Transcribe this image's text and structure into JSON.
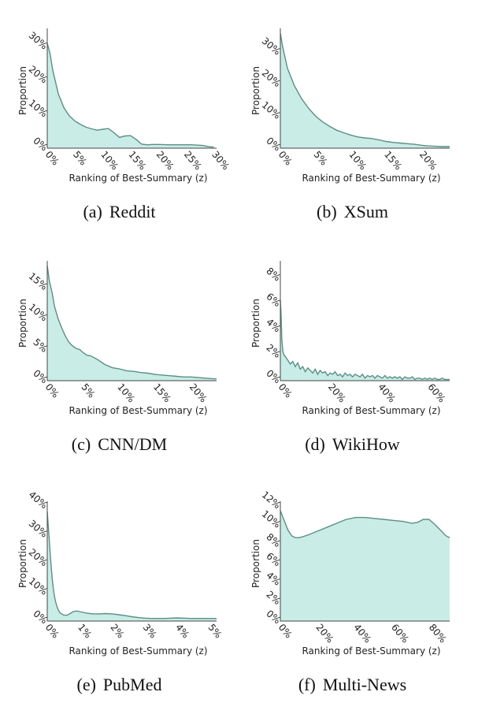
{
  "figure": {
    "xlabel": "Ranking of Best-Summary (z)",
    "ylabel": "Proportion",
    "fill_color": "#c9ece6",
    "line_color": "#5a8f85"
  },
  "chart_data": [
    {
      "type": "area",
      "caption_tag": "(a)",
      "caption": "Reddit",
      "xlabel": "Ranking of Best-Summary (z)",
      "ylabel": "Proportion",
      "xlim": [
        0,
        30.5
      ],
      "ylim": [
        0,
        34
      ],
      "xticks": [
        0,
        5,
        10,
        15,
        20,
        25,
        30
      ],
      "xtick_labels": [
        "0%",
        "5%",
        "10%",
        "15%",
        "20%",
        "25%",
        "30%"
      ],
      "yticks": [
        0,
        10,
        20,
        30
      ],
      "ytick_labels": [
        "0%",
        "10%",
        "20%",
        "30%"
      ],
      "x": [
        0,
        0.5,
        1,
        2,
        3,
        4,
        5,
        6,
        7,
        8,
        9,
        10,
        11,
        12,
        13,
        14,
        15,
        16,
        17,
        18,
        19,
        20,
        22,
        24,
        26,
        28,
        29,
        30
      ],
      "y": [
        31,
        28,
        23,
        16,
        12,
        9.5,
        8,
        7,
        6.2,
        5.7,
        5.3,
        5.6,
        5.8,
        4.6,
        3.2,
        3.6,
        3.7,
        2.6,
        1.2,
        1.0,
        1.1,
        1.1,
        1.0,
        1.0,
        1.0,
        0.8,
        0.5,
        0.3
      ]
    },
    {
      "type": "area",
      "caption_tag": "(b)",
      "caption": "XSum",
      "xlabel": "Ranking of Best-Summary (z)",
      "ylabel": "Proportion",
      "xlim": [
        0,
        24
      ],
      "ylim": [
        0,
        36
      ],
      "xticks": [
        0,
        5,
        10,
        15,
        20
      ],
      "xtick_labels": [
        "0%",
        "5%",
        "10%",
        "15%",
        "20%"
      ],
      "yticks": [
        0,
        10,
        20,
        30
      ],
      "ytick_labels": [
        "0%",
        "10%",
        "20%",
        "30%"
      ],
      "x": [
        0,
        0.3,
        0.7,
        1,
        2,
        3,
        4,
        5,
        6,
        7,
        8,
        9,
        10,
        11,
        12,
        13,
        14,
        15,
        16,
        17,
        18,
        19,
        20,
        21,
        22,
        23,
        24
      ],
      "y": [
        36,
        32,
        28,
        25,
        19.5,
        15.5,
        12.5,
        10,
        8.2,
        6.8,
        5.6,
        4.8,
        4.1,
        3.5,
        3.2,
        3.0,
        2.6,
        2.1,
        1.8,
        1.6,
        1.4,
        1.2,
        0.9,
        0.7,
        0.6,
        0.5,
        0.5
      ]
    },
    {
      "type": "area",
      "caption_tag": "(c)",
      "caption": "CNN/DM",
      "xlabel": "Ranking of Best-Summary (z)",
      "ylabel": "Proportion",
      "xlim": [
        0,
        23.5
      ],
      "ylim": [
        0,
        18.5
      ],
      "xticks": [
        0,
        5,
        10,
        15,
        20
      ],
      "xtick_labels": [
        "0%",
        "5%",
        "10%",
        "15%",
        "20%"
      ],
      "yticks": [
        0,
        5,
        10,
        15
      ],
      "ytick_labels": [
        "0%",
        "5%",
        "10%",
        "15%"
      ],
      "x": [
        0,
        0.3,
        0.7,
        1,
        1.5,
        2,
        2.5,
        3,
        3.5,
        4,
        4.5,
        5,
        5.5,
        6,
        7,
        8,
        9,
        10,
        11,
        12,
        13,
        14,
        15,
        16,
        17,
        18,
        19,
        20,
        21,
        22,
        23,
        23.5
      ],
      "y": [
        18.5,
        16,
        14,
        12,
        10,
        8.5,
        7.2,
        6.2,
        5.6,
        5.2,
        5.0,
        4.5,
        4.1,
        4.0,
        3.4,
        2.6,
        2.1,
        1.9,
        1.6,
        1.5,
        1.3,
        1.2,
        1.0,
        0.9,
        0.8,
        0.7,
        0.6,
        0.6,
        0.5,
        0.4,
        0.3,
        0.3
      ]
    },
    {
      "type": "area",
      "caption_tag": "(d)",
      "caption": "WikiHow",
      "xlabel": "Ranking of Best-Summary (z)",
      "ylabel": "Proportion",
      "xlim": [
        0,
        68
      ],
      "ylim": [
        0,
        9
      ],
      "xticks": [
        0,
        20,
        40,
        60
      ],
      "xtick_labels": [
        "0%",
        "20%",
        "40%",
        "60%"
      ],
      "yticks": [
        0,
        2,
        4,
        6,
        8
      ],
      "ytick_labels": [
        "0%",
        "2%",
        "4%",
        "6%",
        "8%"
      ],
      "x": [
        0,
        0.3,
        0.6,
        1,
        1.5,
        2,
        3,
        4,
        5,
        6,
        7,
        8,
        9,
        10,
        11,
        12,
        13,
        14,
        15,
        16,
        17,
        18,
        19,
        20,
        21,
        22,
        23,
        24,
        25,
        26,
        27,
        28,
        29,
        30,
        31,
        32,
        33,
        34,
        35,
        36,
        37,
        38,
        39,
        40,
        41,
        42,
        43,
        44,
        45,
        46,
        47,
        48,
        49,
        50,
        51,
        52,
        53,
        54,
        55,
        56,
        57,
        58,
        59,
        60,
        61,
        62,
        63,
        64,
        65,
        66,
        67,
        68
      ],
      "y": [
        6.3,
        5.2,
        3.2,
        2.3,
        2.0,
        1.9,
        1.6,
        1.3,
        1.5,
        1.1,
        1.4,
        0.9,
        1.1,
        0.7,
        1.0,
        0.8,
        0.6,
        0.9,
        0.5,
        0.8,
        0.6,
        0.7,
        0.4,
        0.6,
        0.5,
        0.7,
        0.4,
        0.5,
        0.3,
        0.6,
        0.4,
        0.5,
        0.3,
        0.5,
        0.4,
        0.3,
        0.5,
        0.2,
        0.4,
        0.3,
        0.4,
        0.2,
        0.4,
        0.3,
        0.2,
        0.4,
        0.2,
        0.3,
        0.2,
        0.3,
        0.2,
        0.3,
        0.1,
        0.3,
        0.2,
        0.2,
        0.3,
        0.1,
        0.2,
        0.2,
        0.1,
        0.2,
        0.1,
        0.2,
        0.1,
        0.2,
        0.1,
        0.1,
        0.2,
        0.1,
        0.1,
        0.1
      ]
    },
    {
      "type": "area",
      "caption_tag": "(e)",
      "caption": "PubMed",
      "xlabel": "Ranking of Best-Summary (z)",
      "ylabel": "Proportion",
      "xlim": [
        0,
        5.2
      ],
      "ylim": [
        0,
        40
      ],
      "xticks": [
        0,
        1,
        2,
        3,
        4,
        5
      ],
      "xtick_labels": [
        "0%",
        "1%",
        "2%",
        "3%",
        "4%",
        "5%"
      ],
      "yticks": [
        0,
        10,
        20,
        30,
        40
      ],
      "ytick_labels": [
        "0%",
        "10%",
        "20%",
        "30%",
        "40%"
      ],
      "x": [
        0,
        0.05,
        0.1,
        0.15,
        0.2,
        0.25,
        0.3,
        0.35,
        0.4,
        0.5,
        0.6,
        0.7,
        0.8,
        0.9,
        1.0,
        1.2,
        1.4,
        1.6,
        1.8,
        2.0,
        2.2,
        2.4,
        2.6,
        2.8,
        3.0,
        3.2,
        3.4,
        3.6,
        3.8,
        4.0,
        4.2,
        4.4,
        4.6,
        4.8,
        5.0,
        5.2
      ],
      "y": [
        38,
        30,
        22,
        15,
        10,
        7,
        5,
        3.6,
        2.8,
        2.1,
        2.0,
        2.6,
        3.3,
        3.5,
        3.3,
        2.8,
        2.5,
        2.5,
        2.6,
        2.5,
        2.2,
        1.9,
        1.5,
        1.2,
        1.0,
        0.9,
        0.9,
        0.9,
        1.0,
        1.1,
        1.0,
        0.9,
        0.9,
        0.9,
        0.9,
        0.9
      ]
    },
    {
      "type": "area",
      "caption_tag": "(f)",
      "caption": "Multi-News",
      "xlabel": "Ranking of Best-Summary (z)",
      "ylabel": "Proportion",
      "xlim": [
        0,
        90
      ],
      "ylim": [
        0,
        12
      ],
      "xticks": [
        0,
        20,
        40,
        60,
        80
      ],
      "xtick_labels": [
        "0%",
        "20%",
        "40%",
        "60%",
        "80%"
      ],
      "yticks": [
        0,
        2,
        4,
        6,
        8,
        10,
        12
      ],
      "ytick_labels": [
        "0%",
        "2%",
        "4%",
        "6%",
        "8%",
        "10%",
        "12%"
      ],
      "x": [
        0,
        2,
        4,
        6,
        8,
        10,
        12,
        15,
        20,
        25,
        30,
        35,
        40,
        45,
        50,
        55,
        60,
        65,
        70,
        73,
        76,
        79,
        82,
        85,
        88,
        90
      ],
      "y": [
        11.5,
        10.5,
        9.5,
        8.9,
        8.7,
        8.7,
        8.8,
        9.0,
        9.4,
        9.8,
        10.2,
        10.6,
        10.8,
        10.8,
        10.7,
        10.6,
        10.5,
        10.4,
        10.2,
        10.3,
        10.6,
        10.6,
        10.1,
        9.5,
        8.9,
        8.7
      ]
    }
  ]
}
